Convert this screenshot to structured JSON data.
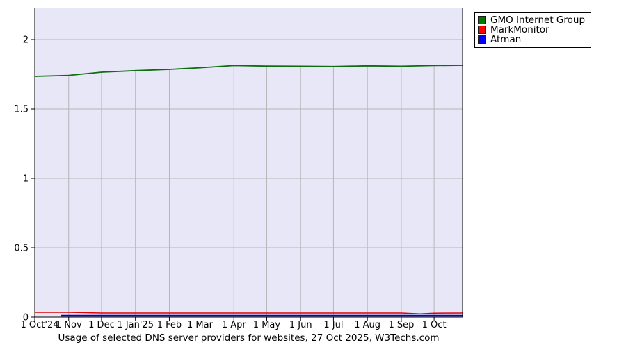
{
  "caption": "Usage of selected DNS server providers for websites, 27 Oct 2025, W3Techs.com",
  "legend": {
    "position": "top-right",
    "items": [
      {
        "label": "GMO Internet Group",
        "color": "#007a00"
      },
      {
        "label": "MarkMonitor",
        "color": "#ff0000"
      },
      {
        "label": "Atman",
        "color": "#0000ff"
      }
    ]
  },
  "colors": {
    "plot_background": "#e7e7f7",
    "grid": "#b6b6b6",
    "axis": "#000000"
  },
  "chart_data": {
    "type": "line",
    "title": "Usage of selected DNS server providers for websites, 27 Oct 2025, W3Techs.com",
    "xlabel": "",
    "ylabel": "",
    "x_unit": "days since 1 Oct 2024",
    "ylim": [
      0,
      2.225
    ],
    "grid": true,
    "legend_position": "top-right",
    "y_ticks": [
      0,
      0.5,
      1,
      1.5,
      2
    ],
    "y_tick_labels": [
      "0",
      "0.5",
      "1",
      "1.5",
      "2"
    ],
    "x_ticks": [
      {
        "day": 0,
        "label": "1 Oct'24"
      },
      {
        "day": 31,
        "label": "1 Nov"
      },
      {
        "day": 61,
        "label": "1 Dec"
      },
      {
        "day": 92,
        "label": "1 Jan'25"
      },
      {
        "day": 123,
        "label": "1 Feb"
      },
      {
        "day": 151,
        "label": "1 Mar"
      },
      {
        "day": 182,
        "label": "1 Apr"
      },
      {
        "day": 212,
        "label": "1 May"
      },
      {
        "day": 243,
        "label": "1 Jun"
      },
      {
        "day": 273,
        "label": "1 Jul"
      },
      {
        "day": 304,
        "label": "1 Aug"
      },
      {
        "day": 335,
        "label": "1 Sep"
      },
      {
        "day": 365,
        "label": "1 Oct"
      }
    ],
    "x_range_days": [
      0,
      391
    ],
    "series": [
      {
        "name": "GMO Internet Group",
        "color": "#0c6e0c",
        "line_width": 1.8,
        "x": [
          0,
          31,
          61,
          92,
          123,
          151,
          182,
          212,
          243,
          273,
          304,
          335,
          365,
          391
        ],
        "values": [
          1.735,
          1.742,
          1.765,
          1.776,
          1.785,
          1.797,
          1.813,
          1.809,
          1.808,
          1.806,
          1.811,
          1.808,
          1.813,
          1.815
        ]
      },
      {
        "name": "MarkMonitor",
        "color": "#e30000",
        "line_width": 1.5,
        "x": [
          0,
          31,
          61,
          92,
          123,
          151,
          182,
          212,
          243,
          273,
          304,
          335,
          352,
          365,
          391
        ],
        "values": [
          0.035,
          0.035,
          0.03,
          0.03,
          0.03,
          0.03,
          0.03,
          0.03,
          0.03,
          0.03,
          0.03,
          0.03,
          0.024,
          0.029,
          0.03
        ]
      },
      {
        "name": "Atman",
        "color": "#0000dd",
        "line_width": 2.5,
        "x": [
          24,
          61,
          123,
          182,
          243,
          304,
          365,
          391
        ],
        "values": [
          0.01,
          0.01,
          0.01,
          0.01,
          0.01,
          0.01,
          0.01,
          0.01
        ]
      }
    ]
  }
}
